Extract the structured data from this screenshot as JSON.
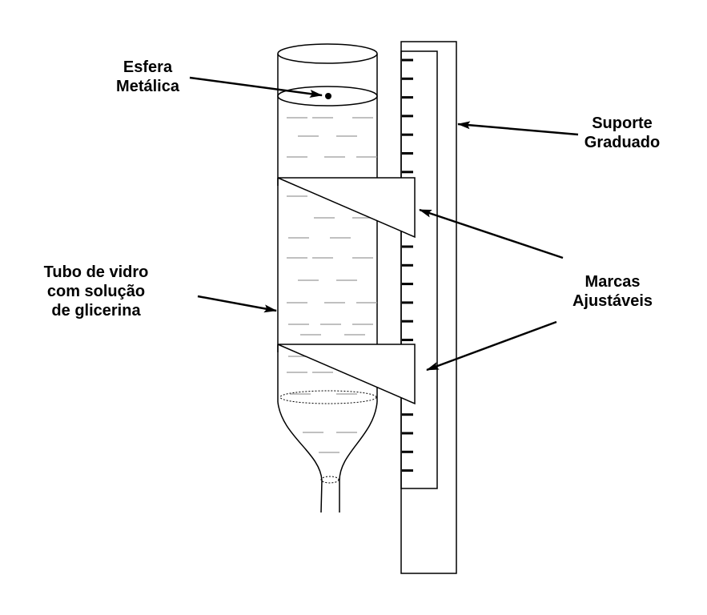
{
  "labels": {
    "sphere": [
      "Esfera",
      "Metálica"
    ],
    "support": [
      "Suporte",
      "Graduado"
    ],
    "tube": [
      "Tubo de vidro",
      "com solução",
      "de glicerina"
    ],
    "marks": [
      "Marcas",
      "Ajustáveis"
    ]
  },
  "colors": {
    "stroke": "#000000",
    "liquid_dash": "#999999",
    "background": "#ffffff"
  }
}
